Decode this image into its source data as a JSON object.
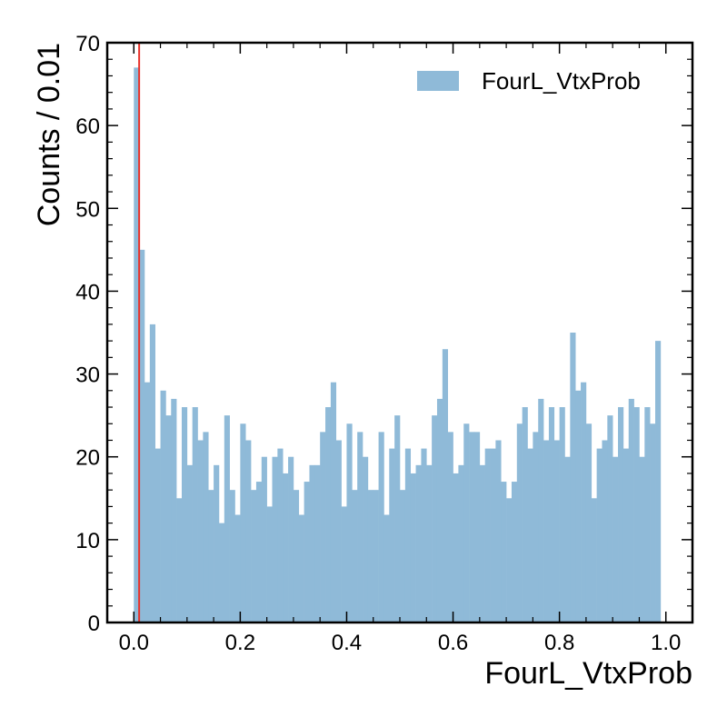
{
  "chart_data": {
    "type": "bar",
    "xlabel": "FourL_VtxProb",
    "ylabel": "Counts / 0.01",
    "xlim": [
      -0.05,
      1.05
    ],
    "ylim": [
      0,
      70
    ],
    "bin_width": 0.01,
    "bin_start": 0.0,
    "x_ticks": [
      0.0,
      0.2,
      0.4,
      0.6,
      0.8,
      1.0
    ],
    "x_tick_labels": [
      "0.0",
      "0.2",
      "0.4",
      "0.6",
      "0.8",
      "1.0"
    ],
    "y_ticks": [
      0,
      10,
      20,
      30,
      40,
      50,
      60,
      70
    ],
    "y_tick_labels": [
      "0",
      "10",
      "20",
      "30",
      "40",
      "50",
      "60",
      "70"
    ],
    "series": [
      {
        "name": "FourL_VtxProb",
        "color": "#8fbad8",
        "values": [
          67,
          45,
          29,
          36,
          21,
          28,
          25,
          27,
          15,
          26,
          19,
          26,
          22,
          23,
          16,
          19,
          12,
          25,
          16,
          13,
          24,
          22,
          16,
          17,
          20,
          14,
          20,
          21,
          18,
          20,
          16,
          13,
          17,
          19,
          19,
          23,
          26,
          29,
          22,
          14,
          24,
          16,
          23,
          20,
          16,
          16,
          23,
          13,
          21,
          25,
          16,
          21,
          18,
          19,
          21,
          19,
          25,
          27,
          33,
          23,
          18,
          19,
          24,
          23,
          23,
          19,
          21,
          21,
          22,
          17,
          15,
          17,
          24,
          26,
          21,
          23,
          27,
          22,
          26,
          22,
          26,
          20,
          35,
          28,
          29,
          24,
          15,
          21,
          22,
          25,
          20,
          26,
          21,
          27,
          26,
          20,
          26,
          24,
          34
        ]
      }
    ],
    "vertical_line": {
      "x": 0.01,
      "color": "#e8312a"
    },
    "legend_position": "top-right",
    "grid": false
  }
}
